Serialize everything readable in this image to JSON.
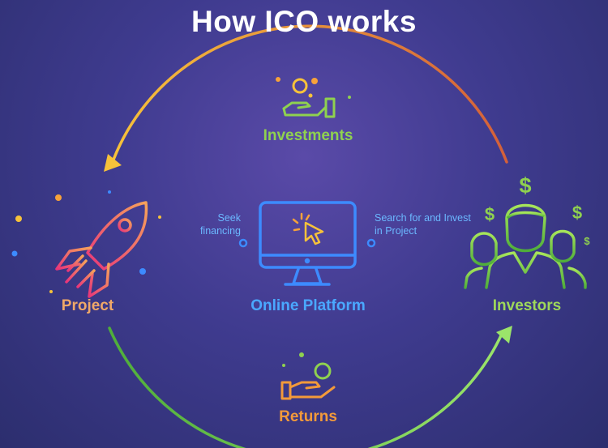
{
  "title": "How ICO works",
  "nodes": {
    "project": "Project",
    "platform": "Online Platform",
    "investors": "Investors"
  },
  "flows": {
    "investments": "Investments",
    "returns": "Returns",
    "seek_financing": "Seek financing",
    "search_invest": "Search for and Invest in Project"
  },
  "icons": {
    "project": "rocket-icon",
    "platform": "monitor-cursor-icon",
    "investors": "people-dollar-icon",
    "investments": "hand-coins-icon",
    "returns": "hand-coin-icon"
  },
  "colors": {
    "background": "#3f3b8f",
    "investments_arc_start": "#d4603a",
    "investments_arc_end": "#f7c23a",
    "returns_arc": "#7ed957",
    "platform": "#3d8bff",
    "project": "#f0605a",
    "investors": "#7ed957"
  }
}
